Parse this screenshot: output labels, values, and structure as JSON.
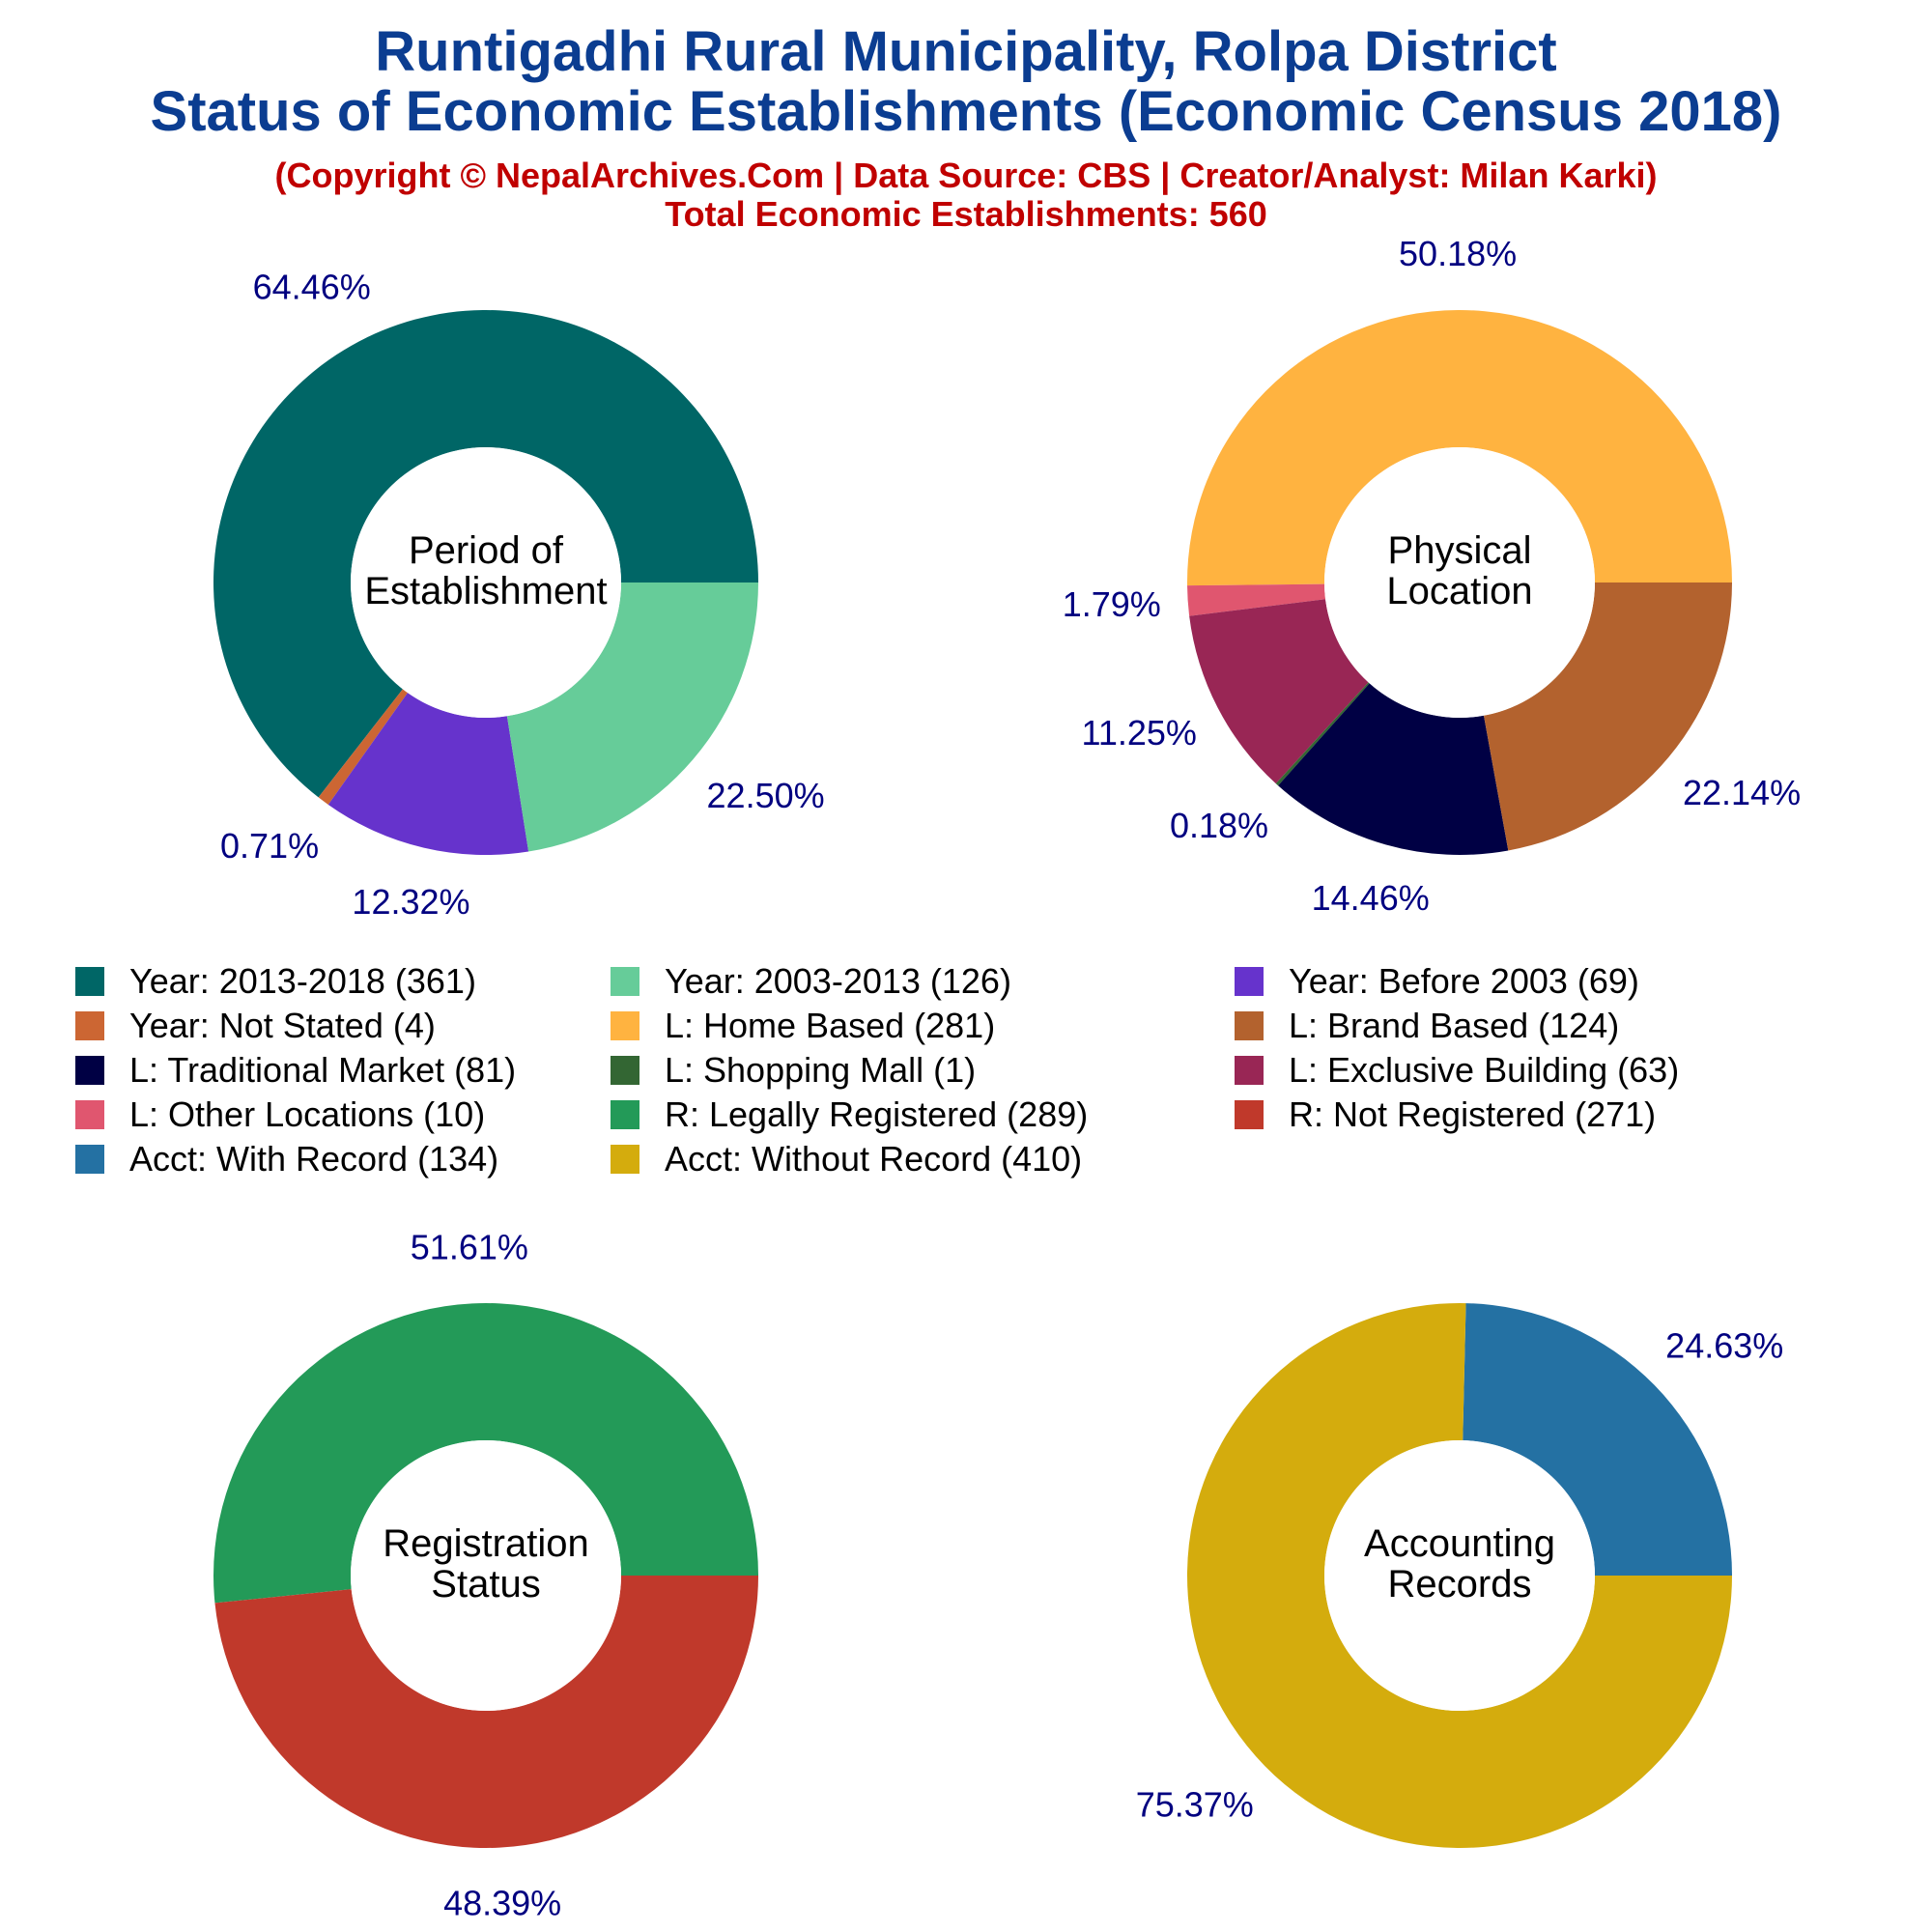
{
  "header": {
    "title_line1": "Runtigadhi Rural Municipality, Rolpa District",
    "title_line2": "Status of Economic Establishments (Economic Census 2018)",
    "credit": "(Copyright © NepalArchives.Com | Data Source: CBS | Creator/Analyst: Milan Karki)",
    "total": "Total Economic Establishments: 560"
  },
  "legend": [
    {
      "label": "Year: 2013-2018 (361)",
      "color": "#006666"
    },
    {
      "label": "Year: 2003-2013 (126)",
      "color": "#66cc99"
    },
    {
      "label": "Year: Before 2003 (69)",
      "color": "#6633cc"
    },
    {
      "label": "Year: Not Stated (4)",
      "color": "#cc6633"
    },
    {
      "label": "L: Home Based (281)",
      "color": "#ffb340"
    },
    {
      "label": "L: Brand Based (124)",
      "color": "#b3622e"
    },
    {
      "label": "L: Traditional Market (81)",
      "color": "#000044"
    },
    {
      "label": "L: Shopping Mall (1)",
      "color": "#336633"
    },
    {
      "label": "L: Exclusive Building (63)",
      "color": "#992655"
    },
    {
      "label": "L: Other Locations (10)",
      "color": "#e0566f"
    },
    {
      "label": "R: Legally Registered (289)",
      "color": "#239a58"
    },
    {
      "label": "R: Not Registered (271)",
      "color": "#c0392b"
    },
    {
      "label": "Acct: With Record (134)",
      "color": "#2471a3"
    },
    {
      "label": "Acct: Without Record (410)",
      "color": "#d4ac0d"
    }
  ],
  "chart_data": [
    {
      "type": "pie",
      "center_label": [
        "Period of",
        "Establishment"
      ],
      "slices": [
        {
          "name": "Year: 2013-2018",
          "value": 361,
          "label": "64.46%",
          "color": "#006666"
        },
        {
          "name": "Year: Not Stated",
          "value": 4,
          "label": "0.71%",
          "color": "#cc6633"
        },
        {
          "name": "Year: Before 2003",
          "value": 69,
          "label": "12.32%",
          "color": "#6633cc"
        },
        {
          "name": "Year: 2003-2013",
          "value": 126,
          "label": "22.50%",
          "color": "#66cc99"
        }
      ]
    },
    {
      "type": "pie",
      "center_label": [
        "Physical",
        "Location"
      ],
      "slices": [
        {
          "name": "L: Home Based",
          "value": 281,
          "label": "50.18%",
          "color": "#ffb340"
        },
        {
          "name": "L: Other Locations",
          "value": 10,
          "label": "1.79%",
          "color": "#e0566f"
        },
        {
          "name": "L: Exclusive Building",
          "value": 63,
          "label": "11.25%",
          "color": "#992655"
        },
        {
          "name": "L: Shopping Mall",
          "value": 1,
          "label": "0.18%",
          "color": "#336633"
        },
        {
          "name": "L: Traditional Market",
          "value": 81,
          "label": "14.46%",
          "color": "#000044"
        },
        {
          "name": "L: Brand Based",
          "value": 124,
          "label": "22.14%",
          "color": "#b3622e"
        }
      ]
    },
    {
      "type": "pie",
      "center_label": [
        "Registration",
        "Status"
      ],
      "slices": [
        {
          "name": "R: Legally Registered",
          "value": 289,
          "label": "51.61%",
          "color": "#239a58"
        },
        {
          "name": "R: Not Registered",
          "value": 271,
          "label": "48.39%",
          "color": "#c0392b"
        }
      ]
    },
    {
      "type": "pie",
      "center_label": [
        "Accounting",
        "Records"
      ],
      "slices": [
        {
          "name": "Acct: With Record",
          "value": 134,
          "label": "24.63%",
          "color": "#2471a3"
        },
        {
          "name": "Acct: Without Record",
          "value": 410,
          "label": "75.37%",
          "color": "#d4ac0d"
        }
      ]
    }
  ]
}
